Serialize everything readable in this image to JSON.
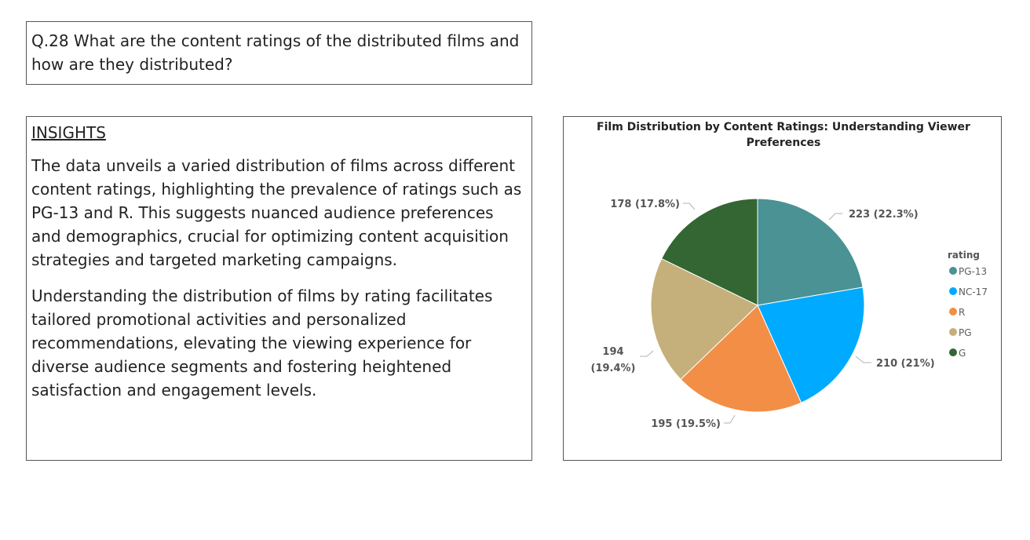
{
  "question": {
    "text": "Q.28 What are the content ratings of the distributed films and how are they distributed?"
  },
  "insights": {
    "heading": "INSIGHTS",
    "paragraphs": [
      "The data unveils a varied distribution of films across different content ratings, highlighting the prevalence of ratings such as PG-13 and R. This suggests nuanced audience preferences and demographics, crucial for optimizing content acquisition strategies and targeted marketing campaigns.",
      "Understanding the distribution of films by rating facilitates tailored promotional activities and personalized recommendations, elevating the viewing experience for diverse audience segments and fostering heightened satisfaction and engagement levels."
    ]
  },
  "chart_data": {
    "type": "pie",
    "title_lines": [
      "Film Distribution by Content Ratings: Understanding Viewer",
      "Preferences"
    ],
    "legend_title": "rating",
    "legend_position": "right",
    "slices": [
      {
        "label": "PG-13",
        "value": 223,
        "data_label": "223 (22.3%)",
        "color": "#4a9294"
      },
      {
        "label": "NC-17",
        "value": 210,
        "data_label": "210 (21%)",
        "color": "#00aaff"
      },
      {
        "label": "R",
        "value": 195,
        "data_label": "195 (19.5%)",
        "color": "#f28e45"
      },
      {
        "label": "PG",
        "value": 194,
        "data_label_lines": [
          "194",
          "(19.4%)"
        ],
        "color": "#c5b07b"
      },
      {
        "label": "G",
        "value": 178,
        "data_label": "178 (17.8%)",
        "color": "#336633"
      }
    ]
  }
}
